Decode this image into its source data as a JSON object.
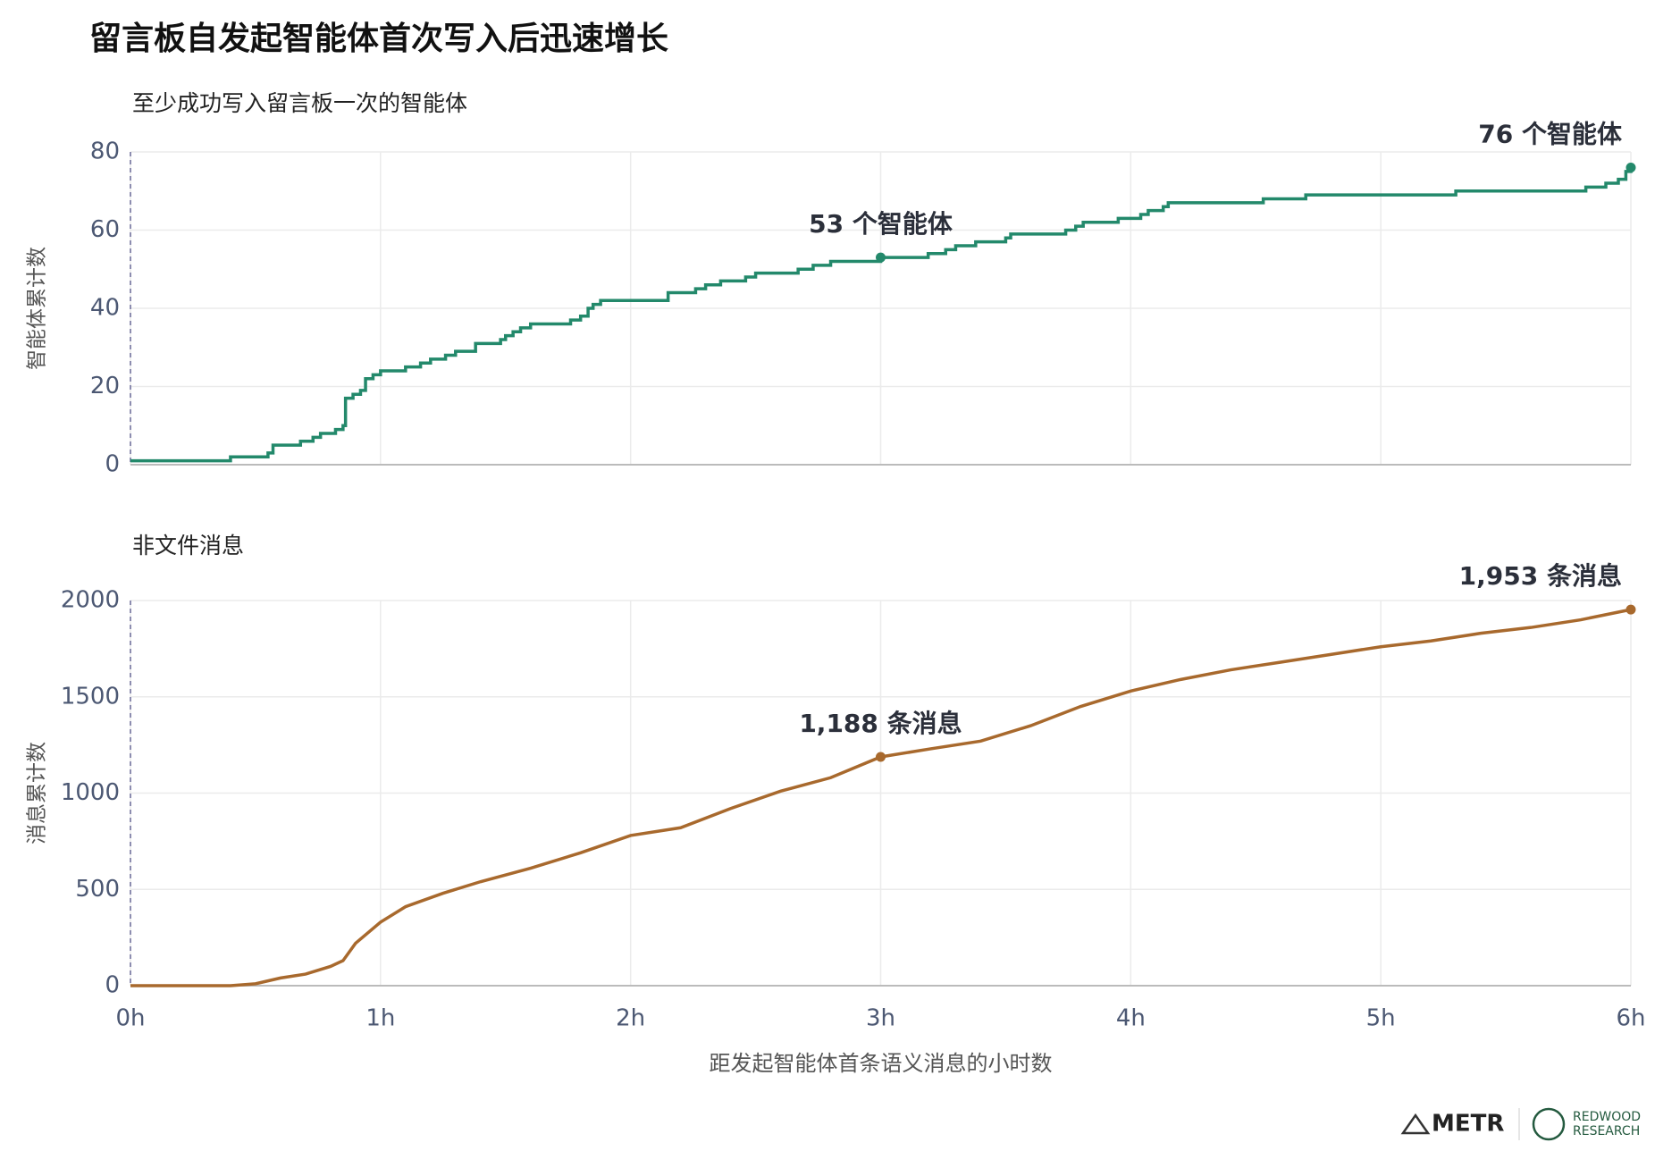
{
  "title": "留言板自发起智能体首次写入后迅速增长",
  "chart_data": [
    {
      "type": "line",
      "drawstyle": "steps-post",
      "subtitle": "至少成功写入留言板一次的智能体",
      "ylabel": "智能体累计数",
      "series": [
        {
          "name": "智能体",
          "color": "#23896b",
          "x": [
            0,
            0.4,
            0.55,
            0.57,
            0.68,
            0.73,
            0.76,
            0.82,
            0.85,
            0.86,
            0.89,
            0.92,
            0.94,
            0.97,
            1.0,
            1.1,
            1.16,
            1.2,
            1.26,
            1.3,
            1.38,
            1.48,
            1.5,
            1.53,
            1.56,
            1.6,
            1.76,
            1.8,
            1.83,
            1.85,
            1.88,
            2.15,
            2.26,
            2.3,
            2.36,
            2.46,
            2.5,
            2.67,
            2.73,
            2.8,
            3.0,
            3.19,
            3.26,
            3.3,
            3.38,
            3.5,
            3.52,
            3.74,
            3.78,
            3.81,
            3.95,
            4.04,
            4.07,
            4.13,
            4.15,
            4.53,
            4.7,
            5.3,
            5.82,
            5.9,
            5.95,
            5.98,
            6.0
          ],
          "values": [
            1,
            2,
            3,
            5,
            6,
            7,
            8,
            9,
            10,
            17,
            18,
            19,
            22,
            23,
            24,
            25,
            26,
            27,
            28,
            29,
            31,
            32,
            33,
            34,
            35,
            36,
            37,
            38,
            40,
            41,
            42,
            44,
            45,
            46,
            47,
            48,
            49,
            50,
            51,
            52,
            53,
            54,
            55,
            56,
            57,
            58,
            59,
            60,
            61,
            62,
            63,
            64,
            65,
            66,
            67,
            68,
            69,
            70,
            71,
            72,
            73,
            75,
            76
          ]
        }
      ],
      "annotations": [
        {
          "x": 3,
          "y": 53,
          "text": "53 个智能体"
        },
        {
          "x": 6,
          "y": 76,
          "text": "76 个智能体"
        }
      ],
      "xlim": [
        0,
        6
      ],
      "xticks": [
        0,
        1,
        2,
        3,
        4,
        5,
        6
      ],
      "ylim": [
        0,
        80
      ],
      "yticks": [
        0,
        20,
        40,
        60,
        80
      ],
      "grid": true
    },
    {
      "type": "line",
      "subtitle": "非文件消息",
      "ylabel": "消息累计数",
      "xlabel": "距发起智能体首条语义消息的小时数",
      "series": [
        {
          "name": "消息",
          "color": "#a8692d",
          "x": [
            0,
            0.4,
            0.5,
            0.6,
            0.7,
            0.8,
            0.85,
            0.9,
            1.0,
            1.1,
            1.25,
            1.4,
            1.6,
            1.8,
            2.0,
            2.2,
            2.4,
            2.6,
            2.8,
            3.0,
            3.2,
            3.4,
            3.6,
            3.8,
            4.0,
            4.2,
            4.4,
            4.6,
            4.8,
            5.0,
            5.2,
            5.4,
            5.6,
            5.8,
            6.0
          ],
          "values": [
            0,
            0,
            10,
            40,
            60,
            100,
            130,
            220,
            330,
            410,
            480,
            540,
            610,
            690,
            780,
            820,
            920,
            1010,
            1080,
            1188,
            1230,
            1270,
            1350,
            1450,
            1530,
            1590,
            1640,
            1680,
            1720,
            1760,
            1790,
            1830,
            1860,
            1900,
            1953
          ]
        }
      ],
      "annotations": [
        {
          "x": 3,
          "y": 1188,
          "text": "1,188 条消息"
        },
        {
          "x": 6,
          "y": 1953,
          "text": "1,953 条消息"
        }
      ],
      "xlim": [
        0,
        6
      ],
      "xticks": [
        {
          "value": 0,
          "label": "0h"
        },
        {
          "value": 1,
          "label": "1h"
        },
        {
          "value": 2,
          "label": "2h"
        },
        {
          "value": 3,
          "label": "3h"
        },
        {
          "value": 4,
          "label": "4h"
        },
        {
          "value": 5,
          "label": "5h"
        },
        {
          "value": 6,
          "label": "6h"
        }
      ],
      "ylim": [
        0,
        2000
      ],
      "yticks": [
        0,
        500,
        1000,
        1500,
        2000
      ],
      "grid": true
    }
  ],
  "footer": {
    "logo_left": "METR",
    "logo_right_line1": "REDWOOD",
    "logo_right_line2": "RESEARCH"
  }
}
